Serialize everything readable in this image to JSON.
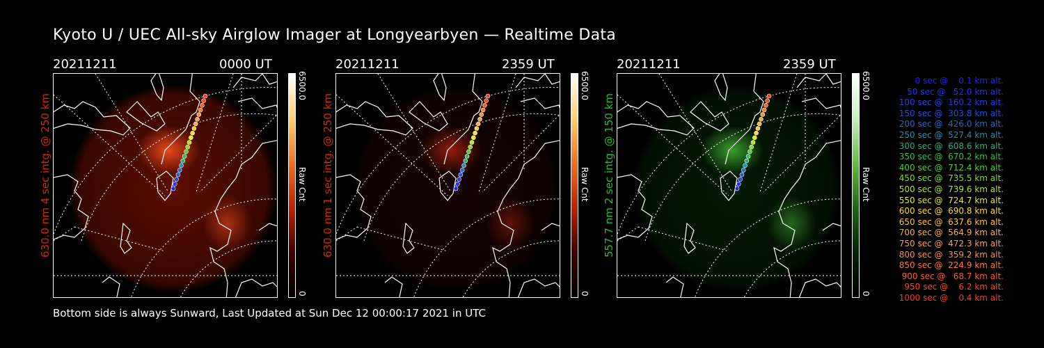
{
  "title": "Kyoto U / UEC All-sky Airglow Imager at Longyearbyen — Realtime Data",
  "panels": [
    {
      "date": "20211211",
      "time": "0000 UT",
      "side_label": "630.0 nm 4 sec intg. @ 250 km",
      "label_color": "#d62a00",
      "glow_color": "#a81800",
      "bright_color": "#ff5020",
      "glow_strength": 0.55,
      "colorbar_max": "6500.0",
      "colorbar_min": "0",
      "colorbar_label": "Raw Cnt",
      "colorbar_gradient": [
        "#ffffff",
        "#ffd070",
        "#f07020",
        "#c02000",
        "#400000",
        "#000000"
      ]
    },
    {
      "date": "20211211",
      "time": "2359 UT",
      "side_label": "630.0 nm 1 sec intg. @ 250 km",
      "label_color": "#d62a00",
      "glow_color": "#6a0a00",
      "bright_color": "#a02010",
      "glow_strength": 0.2,
      "colorbar_max": "6500.0",
      "colorbar_min": "0",
      "colorbar_label": "Raw Cnt",
      "colorbar_gradient": [
        "#ffffff",
        "#ffd070",
        "#f07020",
        "#c02000",
        "#400000",
        "#000000"
      ]
    },
    {
      "date": "20211211",
      "time": "2359 UT",
      "side_label": "557.7 nm 2 sec intg. @ 150 km",
      "label_color": "#22c02a",
      "glow_color": "#0b4a0b",
      "bright_color": "#40b030",
      "glow_strength": 0.35,
      "colorbar_max": "6500.0",
      "colorbar_min": "0",
      "colorbar_label": "Raw Cnt",
      "colorbar_gradient": [
        "#ffffff",
        "#c8f0c0",
        "#60c040",
        "#1a6a10",
        "#082008",
        "#000000"
      ]
    }
  ],
  "legend": [
    {
      "text": "   0 sec @    0.1 km alt.",
      "color": "#2020ff"
    },
    {
      "text": "  50 sec @   52.0 km alt.",
      "color": "#2030ff"
    },
    {
      "text": " 100 sec @  160.2 km alt.",
      "color": "#2040f0"
    },
    {
      "text": " 150 sec @  303.8 km alt.",
      "color": "#2050e0"
    },
    {
      "text": " 200 sec @  426.0 km alt.",
      "color": "#2068d0"
    },
    {
      "text": " 250 sec @  527.4 km alt.",
      "color": "#2090b0"
    },
    {
      "text": " 300 sec @  608.6 km alt.",
      "color": "#20b080"
    },
    {
      "text": " 350 sec @  670.2 km alt.",
      "color": "#30c050"
    },
    {
      "text": " 400 sec @  712.4 km alt.",
      "color": "#50d030"
    },
    {
      "text": " 450 sec @  735.5 km alt.",
      "color": "#80e020"
    },
    {
      "text": " 500 sec @  739.6 km alt.",
      "color": "#b0e820"
    },
    {
      "text": " 550 sec @  724.7 km alt.",
      "color": "#e0f020"
    },
    {
      "text": " 600 sec @  690.8 km alt.",
      "color": "#ffe020"
    },
    {
      "text": " 650 sec @  637.6 km alt.",
      "color": "#ffc830"
    },
    {
      "text": " 700 sec @  564.9 km alt.",
      "color": "#ffb040"
    },
    {
      "text": " 750 sec @  472.3 km alt.",
      "color": "#ffa040"
    },
    {
      "text": " 800 sec @  359.2 km alt.",
      "color": "#ff9040"
    },
    {
      "text": " 850 sec @  224.9 km alt.",
      "color": "#ff7a30"
    },
    {
      "text": " 900 sec @   68.7 km alt.",
      "color": "#ff6020"
    },
    {
      "text": " 950 sec @    6.2 km alt.",
      "color": "#ff4a20"
    },
    {
      "text": "1000 sec @    0.4 km alt.",
      "color": "#ff3a20"
    }
  ],
  "footer": "Bottom side is always Sunward, Last Updated at Sun Dec 12 00:00:17 2021 in UTC"
}
